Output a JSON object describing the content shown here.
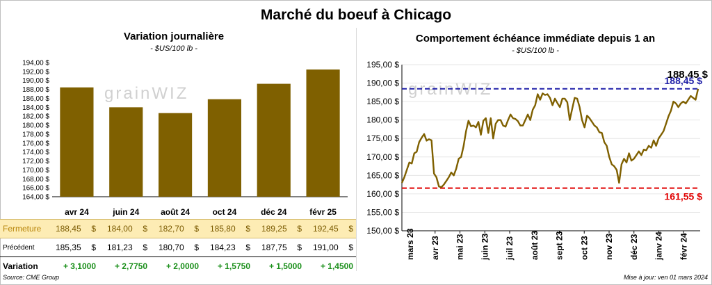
{
  "title": "Marché du boeuf à Chicago",
  "left": {
    "title": "Variation journalière",
    "unit": "- $US/100 lb -"
  },
  "right": {
    "title": "Comportement échéance immédiate depuis 1 an",
    "unit": "- $US/100 lb -"
  },
  "watermark": "grainWIZ",
  "chart_data": [
    {
      "type": "bar",
      "title": "Variation journalière",
      "categories": [
        "avr 24",
        "juin 24",
        "août 24",
        "oct 24",
        "déc 24",
        "févr 25"
      ],
      "values": [
        188.45,
        184.0,
        182.7,
        185.8,
        189.25,
        192.45
      ],
      "ylim": [
        164,
        194
      ],
      "yticks": [
        "164,00 $",
        "166,00 $",
        "168,00 $",
        "170,00 $",
        "172,00 $",
        "174,00 $",
        "176,00 $",
        "178,00 $",
        "180,00 $",
        "182,00 $",
        "184,00 $",
        "186,00 $",
        "188,00 $",
        "190,00 $",
        "192,00 $",
        "194,00 $"
      ],
      "color": "#7f6000",
      "grid": false
    },
    {
      "type": "line",
      "title": "Comportement échéance immédiate depuis 1 an",
      "x_labels": [
        "mars 23",
        "avr 23",
        "mai 23",
        "juin 23",
        "juil 23",
        "août 23",
        "sept 23",
        "oct 23",
        "nov 23",
        "déc 23",
        "janv 24",
        "févr 24"
      ],
      "ylim": [
        150,
        195
      ],
      "yticks": [
        "150,00 $",
        "155,00 $",
        "160,00 $",
        "165,00 $",
        "170,00 $",
        "175,00 $",
        "180,00 $",
        "185,00 $",
        "190,00 $",
        "195,00 $"
      ],
      "series": [
        {
          "color": "#7f6000",
          "values": [
            163.0,
            164.5,
            166.5,
            168.5,
            168.2,
            171.0,
            171.4,
            174.0,
            175.2,
            176.2,
            174.4,
            174.8,
            174.5,
            165.5,
            164.5,
            162.0,
            161.8,
            162.5,
            163.5,
            164.5,
            165.8,
            165.0,
            166.8,
            169.5,
            170.0,
            173.0,
            177.0,
            179.8,
            178.3,
            178.5,
            178.0,
            179.5,
            176.0,
            179.8,
            180.5,
            176.5,
            180.5,
            175.0,
            179.0,
            180.0,
            180.0,
            178.5,
            178.2,
            180.0,
            181.5,
            180.5,
            180.3,
            179.7,
            178.5,
            178.5,
            180.0,
            181.5,
            180.0,
            182.8,
            184.0,
            187.0,
            185.5,
            187.2,
            186.8,
            187.0,
            186.0,
            184.0,
            185.8,
            184.6,
            183.5,
            185.8,
            185.8,
            184.8,
            180.0,
            183.0,
            186.0,
            185.8,
            183.5,
            180.0,
            178.0,
            181.2,
            180.5,
            179.5,
            178.5,
            178.0,
            176.7,
            176.5,
            174.0,
            173.0,
            170.0,
            168.0,
            167.5,
            166.5,
            163.0,
            168.0,
            169.5,
            168.5,
            171.0,
            169.0,
            169.5,
            170.5,
            171.5,
            170.5,
            172.0,
            171.8,
            173.0,
            172.5,
            174.5,
            173.0,
            175.0,
            176.0,
            177.0,
            179.0,
            181.0,
            182.5,
            185.0,
            184.5,
            183.5,
            184.5,
            185.0,
            184.5,
            185.5,
            186.5,
            186.0,
            185.5,
            188.45
          ]
        }
      ],
      "reference_lines": [
        {
          "value": 188.45,
          "label": "188,45 $",
          "color": "#1f1fa8",
          "style": "dashed"
        },
        {
          "value": 161.55,
          "label": "161,55 $",
          "color": "#e00000",
          "style": "dashed"
        }
      ],
      "last_label": "188,45 $"
    }
  ],
  "table": {
    "rows": [
      {
        "label": "Fermeture",
        "values": [
          "188,45",
          "184,00",
          "182,70",
          "185,80",
          "189,25",
          "192,45"
        ],
        "unit": "$"
      },
      {
        "label": "Précédent",
        "values": [
          "185,35",
          "181,23",
          "180,70",
          "184,23",
          "187,75",
          "191,00"
        ],
        "unit": "$"
      },
      {
        "label": "Variation",
        "values": [
          "+ 3,1000",
          "+ 2,7750",
          "+ 2,0000",
          "+ 1,5750",
          "+ 1,5000",
          "+ 1,4500"
        ],
        "unit": ""
      }
    ]
  },
  "footer": {
    "source": "Source: CME Group",
    "updated": "Mise à jour: ven 01 mars 2024"
  }
}
